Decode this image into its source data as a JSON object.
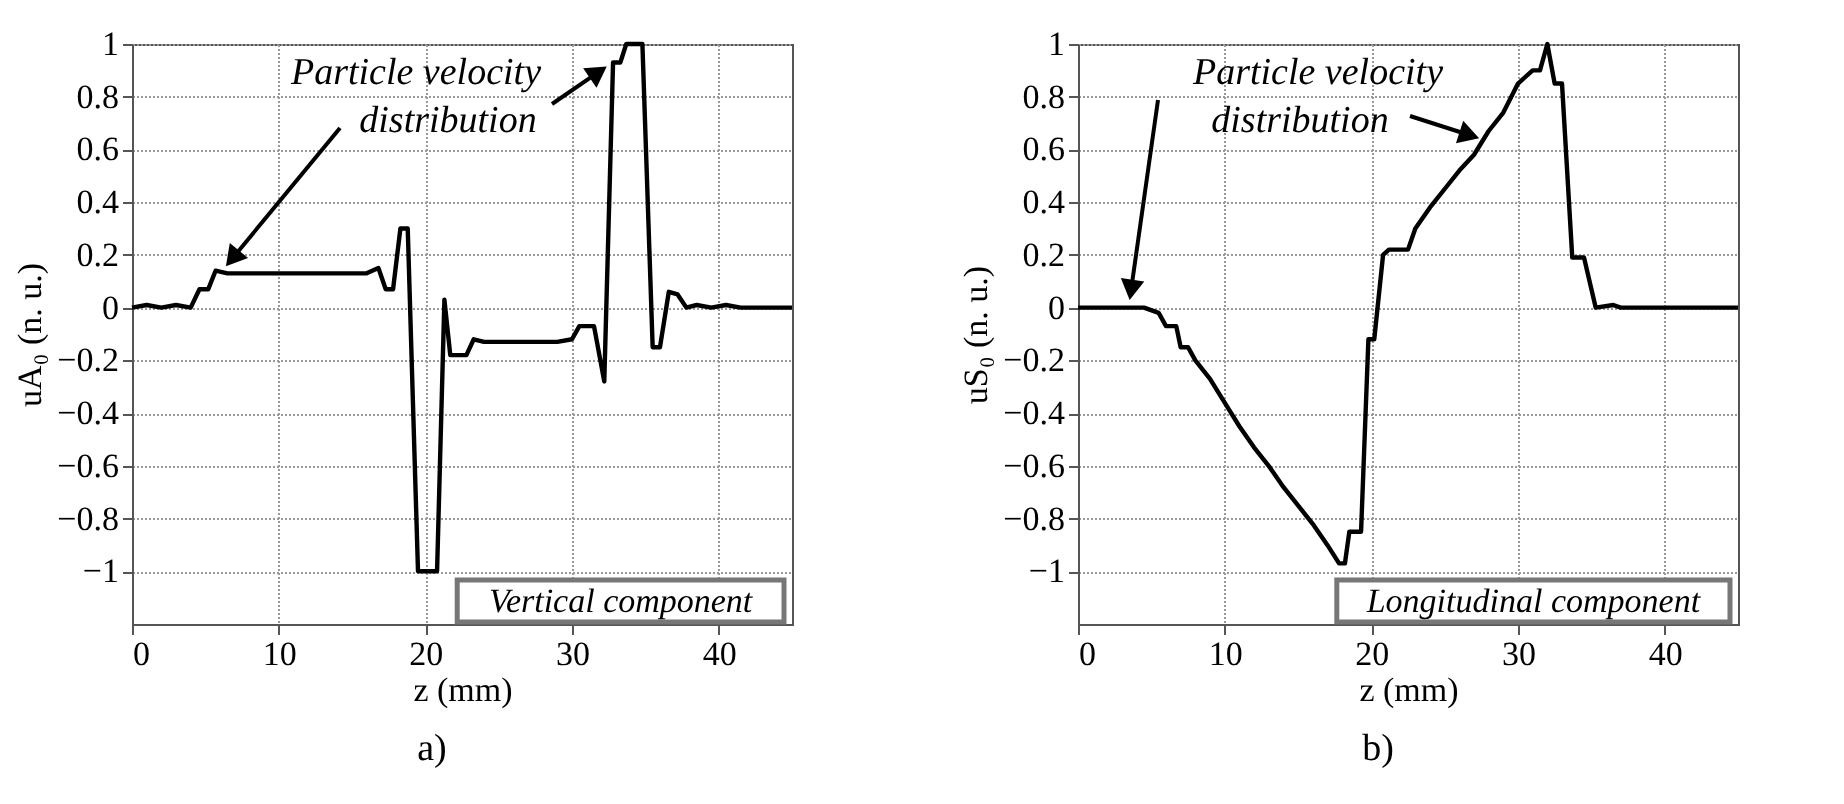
{
  "chart_data": [
    {
      "type": "line",
      "xlabel": "z (mm)",
      "ylabel": "uA₀ (n. u.)",
      "xlim": [
        0,
        45
      ],
      "ylim": [
        -1.2,
        1
      ],
      "xticks": [
        0,
        10,
        20,
        30,
        40
      ],
      "yticks": [
        -1,
        -0.8,
        -0.6,
        -0.4,
        -0.2,
        0,
        0.2,
        0.4,
        0.6,
        0.8,
        1
      ],
      "grid": true,
      "marker": "none",
      "series": [
        {
          "color": "#000000",
          "x": [
            0,
            1,
            2,
            3,
            4,
            4.6,
            5.2,
            5.7,
            6.5,
            16,
            16.8,
            17.3,
            17.8,
            18.3,
            18.8,
            19.5,
            20.8,
            21.3,
            21.7,
            22.8,
            23.3,
            24,
            29,
            30,
            30.5,
            31.5,
            32.2,
            32.8,
            33.3,
            33.7,
            34.8,
            35.5,
            36,
            36.6,
            37.2,
            37.8,
            38.5,
            39.5,
            40.5,
            41.5,
            45
          ],
          "values": [
            0,
            0.01,
            0,
            0.01,
            0,
            0.07,
            0.07,
            0.14,
            0.13,
            0.13,
            0.15,
            0.07,
            0.07,
            0.3,
            0.3,
            -1,
            -1,
            0.03,
            -0.18,
            -0.18,
            -0.12,
            -0.13,
            -0.13,
            -0.12,
            -0.07,
            -0.07,
            -0.28,
            0.93,
            0.93,
            1,
            1,
            -0.15,
            -0.15,
            0.06,
            0.05,
            0,
            0.01,
            0,
            0.01,
            0,
            0
          ]
        }
      ],
      "annotations": [
        {
          "text": "Particle velocity",
          "x": 32.5,
          "y": 0.92
        },
        {
          "text": "distribution",
          "x": 6.3,
          "y": 0.15
        },
        "Vertical component",
        "a)"
      ]
    },
    {
      "type": "line",
      "xlabel": "z (mm)",
      "ylabel": "uS₀ (n. u.)",
      "xlim": [
        0,
        45
      ],
      "ylim": [
        -1.2,
        1
      ],
      "xticks": [
        0,
        10,
        20,
        30,
        40
      ],
      "yticks": [
        -1,
        -0.8,
        -0.6,
        -0.4,
        -0.2,
        0,
        0.2,
        0.4,
        0.6,
        0.8,
        1
      ],
      "grid": true,
      "marker": "none",
      "series": [
        {
          "color": "#000000",
          "x": [
            0,
            4.5,
            5.5,
            6,
            6.7,
            7,
            7.5,
            8,
            9,
            10,
            11,
            12,
            13,
            14,
            15,
            16,
            17,
            17.8,
            18.2,
            18.5,
            19.3,
            19.8,
            20.2,
            20.8,
            21.2,
            22.5,
            23,
            24,
            25,
            26,
            27,
            28,
            29,
            30,
            31,
            31.5,
            32,
            32.5,
            33,
            33.7,
            34.5,
            35.3,
            36.5,
            37,
            45
          ],
          "values": [
            0,
            0,
            -0.02,
            -0.07,
            -0.07,
            -0.15,
            -0.15,
            -0.2,
            -0.27,
            -0.36,
            -0.45,
            -0.53,
            -0.6,
            -0.68,
            -0.75,
            -0.82,
            -0.9,
            -0.97,
            -0.97,
            -0.85,
            -0.85,
            -0.12,
            -0.12,
            0.2,
            0.22,
            0.22,
            0.3,
            0.38,
            0.45,
            0.52,
            0.58,
            0.67,
            0.74,
            0.85,
            0.9,
            0.9,
            1,
            0.85,
            0.85,
            0.19,
            0.19,
            0,
            0.01,
            0,
            0
          ]
        }
      ],
      "annotations": [
        {
          "text": "Particle velocity",
          "x": 3.5,
          "y": 0.02
        },
        {
          "text": "distribution",
          "x": 27.5,
          "y": 0.64
        },
        "Longitudinal component",
        "b)"
      ]
    }
  ]
}
